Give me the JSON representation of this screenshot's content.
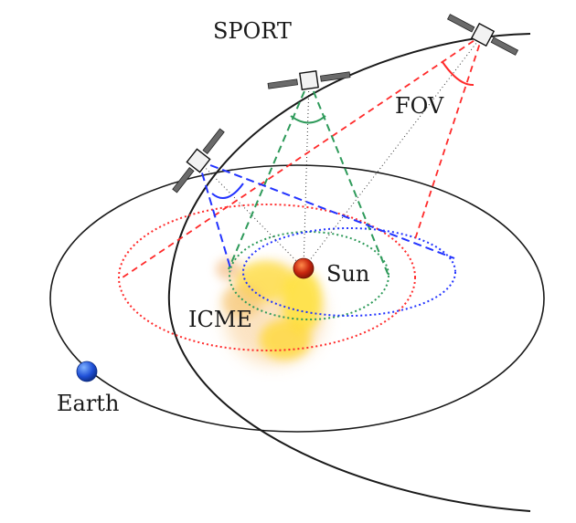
{
  "labels": {
    "sport": "SPORT",
    "fov": "FOV",
    "sun": "Sun",
    "icme": "ICME",
    "earth": "Earth"
  },
  "colors": {
    "orbit": "#1a1a1a",
    "fov_red": "#ff2a2a",
    "fov_green": "#2e9a5a",
    "fov_blue": "#2233ff",
    "sightline": "#333333",
    "sun": "#b3200d",
    "earth": "#1f4fd6",
    "icme": "#ffe23a"
  }
}
